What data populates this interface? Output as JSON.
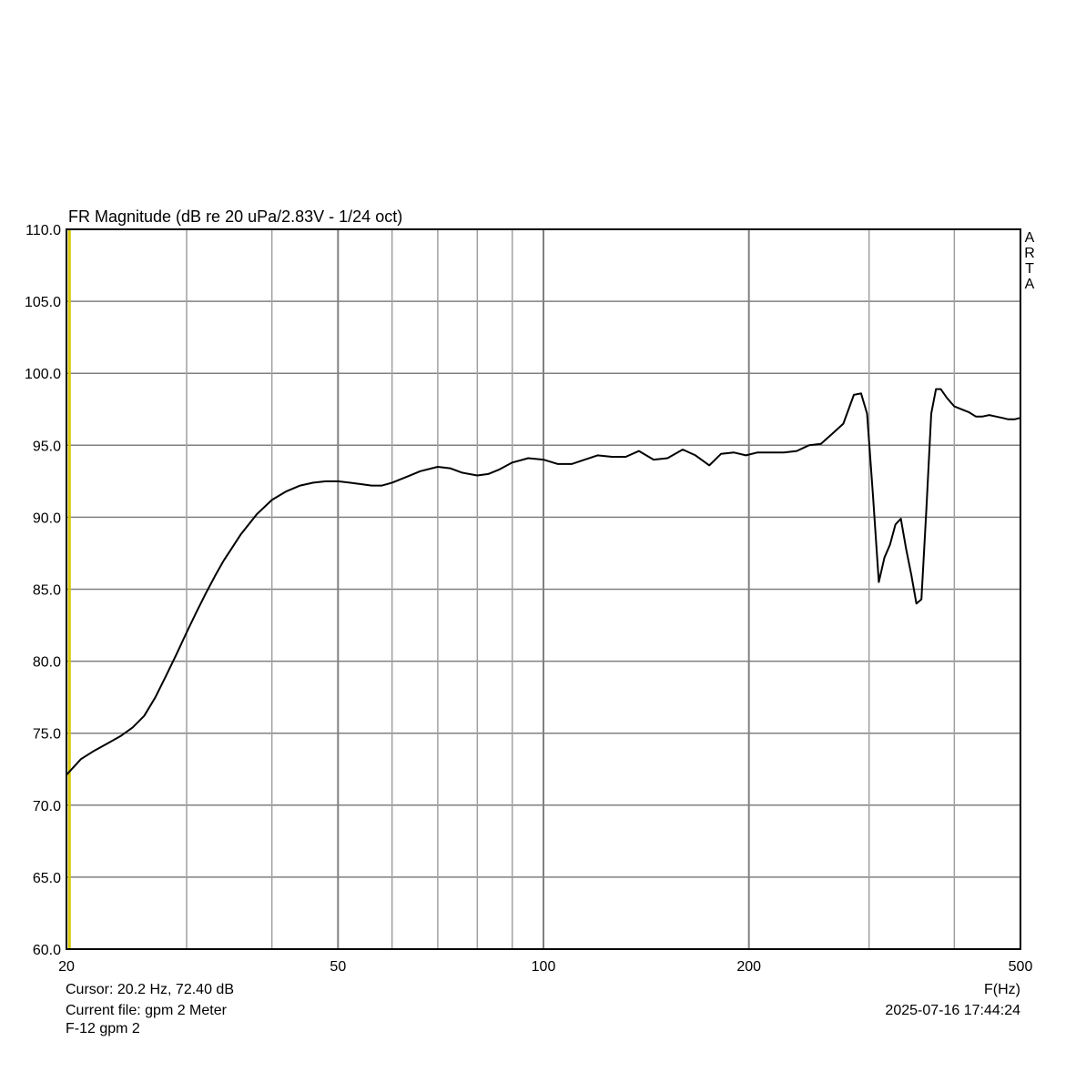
{
  "chart_data": {
    "type": "line",
    "title": "FR Magnitude (dB re 20 uPa/2.83V - 1/24 oct)",
    "xlabel": "F(Hz)",
    "ylabel": "",
    "x_scale": "log",
    "xlim": [
      20,
      500
    ],
    "ylim": [
      60,
      110
    ],
    "grid": true,
    "x_ticks": [
      20,
      50,
      100,
      200,
      500
    ],
    "x_tick_labels": [
      "20",
      "50",
      "100",
      "200",
      "500"
    ],
    "x_minor_grid": [
      30,
      40,
      60,
      70,
      80,
      90,
      300,
      400
    ],
    "y_ticks": [
      60,
      65,
      70,
      75,
      80,
      85,
      90,
      95,
      100,
      105,
      110
    ],
    "y_tick_labels": [
      "60.0",
      "65.0",
      "70.0",
      "75.0",
      "80.0",
      "85.0",
      "90.0",
      "95.0",
      "100.0",
      "105.0",
      "110.0"
    ],
    "watermark": "ARTA",
    "cursor_x": 20.2,
    "series": [
      {
        "color": "#000000",
        "x": [
          20,
          21,
          22,
          23,
          24,
          25,
          26,
          27,
          28,
          29,
          30,
          31,
          32,
          33,
          34,
          35,
          36,
          38,
          40,
          42,
          44,
          46,
          48,
          50,
          52,
          54,
          56,
          58,
          60,
          63,
          66,
          70,
          73,
          76,
          80,
          83,
          86,
          90,
          95,
          100,
          105,
          110,
          115,
          120,
          126,
          132,
          138,
          145,
          152,
          160,
          167,
          175,
          182,
          190,
          198,
          206,
          215,
          225,
          235,
          245,
          255,
          265,
          275,
          285,
          292,
          298,
          304,
          310,
          316,
          322,
          328,
          334,
          340,
          346,
          352,
          358,
          364,
          370,
          376,
          382,
          390,
          400,
          410,
          420,
          430,
          440,
          450,
          460,
          470,
          480,
          490,
          500
        ],
        "values": [
          72.1,
          73.2,
          73.8,
          74.3,
          74.8,
          75.4,
          76.2,
          77.5,
          79.0,
          80.5,
          82.0,
          83.4,
          84.7,
          85.9,
          87.0,
          87.9,
          88.8,
          90.2,
          91.2,
          91.8,
          92.2,
          92.4,
          92.5,
          92.5,
          92.4,
          92.3,
          92.2,
          92.2,
          92.4,
          92.8,
          93.2,
          93.5,
          93.4,
          93.1,
          92.9,
          93.0,
          93.3,
          93.8,
          94.1,
          94.0,
          93.7,
          93.7,
          94.0,
          94.3,
          94.2,
          94.2,
          94.6,
          94.0,
          94.1,
          94.7,
          94.3,
          93.6,
          94.4,
          94.5,
          94.3,
          94.5,
          94.5,
          94.5,
          94.6,
          95.0,
          95.1,
          95.8,
          96.5,
          98.5,
          98.6,
          97.2,
          91.5,
          85.5,
          87.2,
          88.1,
          89.5,
          89.9,
          87.8,
          86.0,
          84.0,
          84.3,
          90.5,
          97.2,
          98.9,
          98.9,
          98.3,
          97.7,
          97.5,
          97.3,
          97.0,
          97.0,
          97.1,
          97.0,
          96.9,
          96.8,
          96.8,
          96.9
        ]
      }
    ]
  },
  "info": {
    "cursor_text": "Cursor: 20.2 Hz, 72.40 dB",
    "file_text": "Current file: gpm 2 Meter",
    "subtitle_text": "F-12 gpm 2",
    "datetime_text": "2025-07-16  17:44:24"
  },
  "colors": {
    "grid": "#a0a0a0",
    "major_grid": "#808080",
    "curve": "#000000",
    "cursor": "#d8c800",
    "frame": "#000000"
  }
}
